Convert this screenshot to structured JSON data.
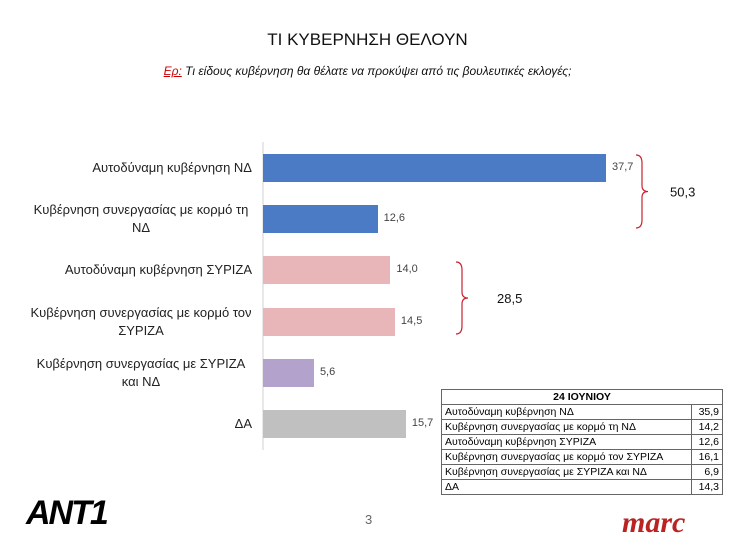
{
  "chart_data": {
    "type": "bar",
    "orientation": "horizontal",
    "title": "ΤΙ ΚΥΒΕΡΝΗΣΗ ΘΕΛΟΥΝ",
    "subtitle_prefix": "Ερ:",
    "subtitle": "Τι είδους κυβέρνηση θα θέλατε να προκύψει από τις βουλευτικές εκλογές;",
    "categories": [
      "Αυτοδύναμη κυβέρνηση ΝΔ",
      "Κυβέρνηση συνεργασίας με κορμό τη ΝΔ",
      "Αυτοδύναμη κυβέρνηση ΣΥΡΙΖΑ",
      "Κυβέρνηση συνεργασίας με κορμό τον ΣΥΡΙΖΑ",
      "Κυβέρνηση συνεργασίας με ΣΥΡΙΖΑ και ΝΔ",
      "ΔΑ"
    ],
    "values": [
      37.7,
      12.6,
      14.0,
      14.5,
      5.6,
      15.7
    ],
    "value_labels": [
      "37,7",
      "12,6",
      "14,0",
      "14,5",
      "5,6",
      "15,7"
    ],
    "colors": [
      "#4a7bc4",
      "#4a7bc4",
      "#e8b5b9",
      "#e8b5b9",
      "#b3a2cc",
      "#c0c0c0"
    ],
    "brackets": [
      {
        "value": 50.3,
        "label": "50,3"
      },
      {
        "value": 28.5,
        "label": "28,5"
      }
    ]
  },
  "table": {
    "header": "24 ΙΟΥΝΙΟΥ",
    "rows": [
      [
        "Αυτοδύναμη κυβέρνηση ΝΔ",
        "35,9"
      ],
      [
        "Κυβέρνηση συνεργασίας με κορμό τη ΝΔ",
        "14,2"
      ],
      [
        "Αυτοδύναμη κυβέρνηση ΣΥΡΙΖΑ",
        "12,6"
      ],
      [
        "Κυβέρνηση συνεργασίας με κορμό τον ΣΥΡΙΖΑ",
        "16,1"
      ],
      [
        "Κυβέρνηση συνεργασίας με ΣΥΡΙΖΑ και ΝΔ",
        "6,9"
      ],
      [
        "ΔΑ",
        "14,3"
      ]
    ]
  },
  "footer": {
    "page": "3",
    "logo_left": "ANT1",
    "logo_right": "marc"
  }
}
